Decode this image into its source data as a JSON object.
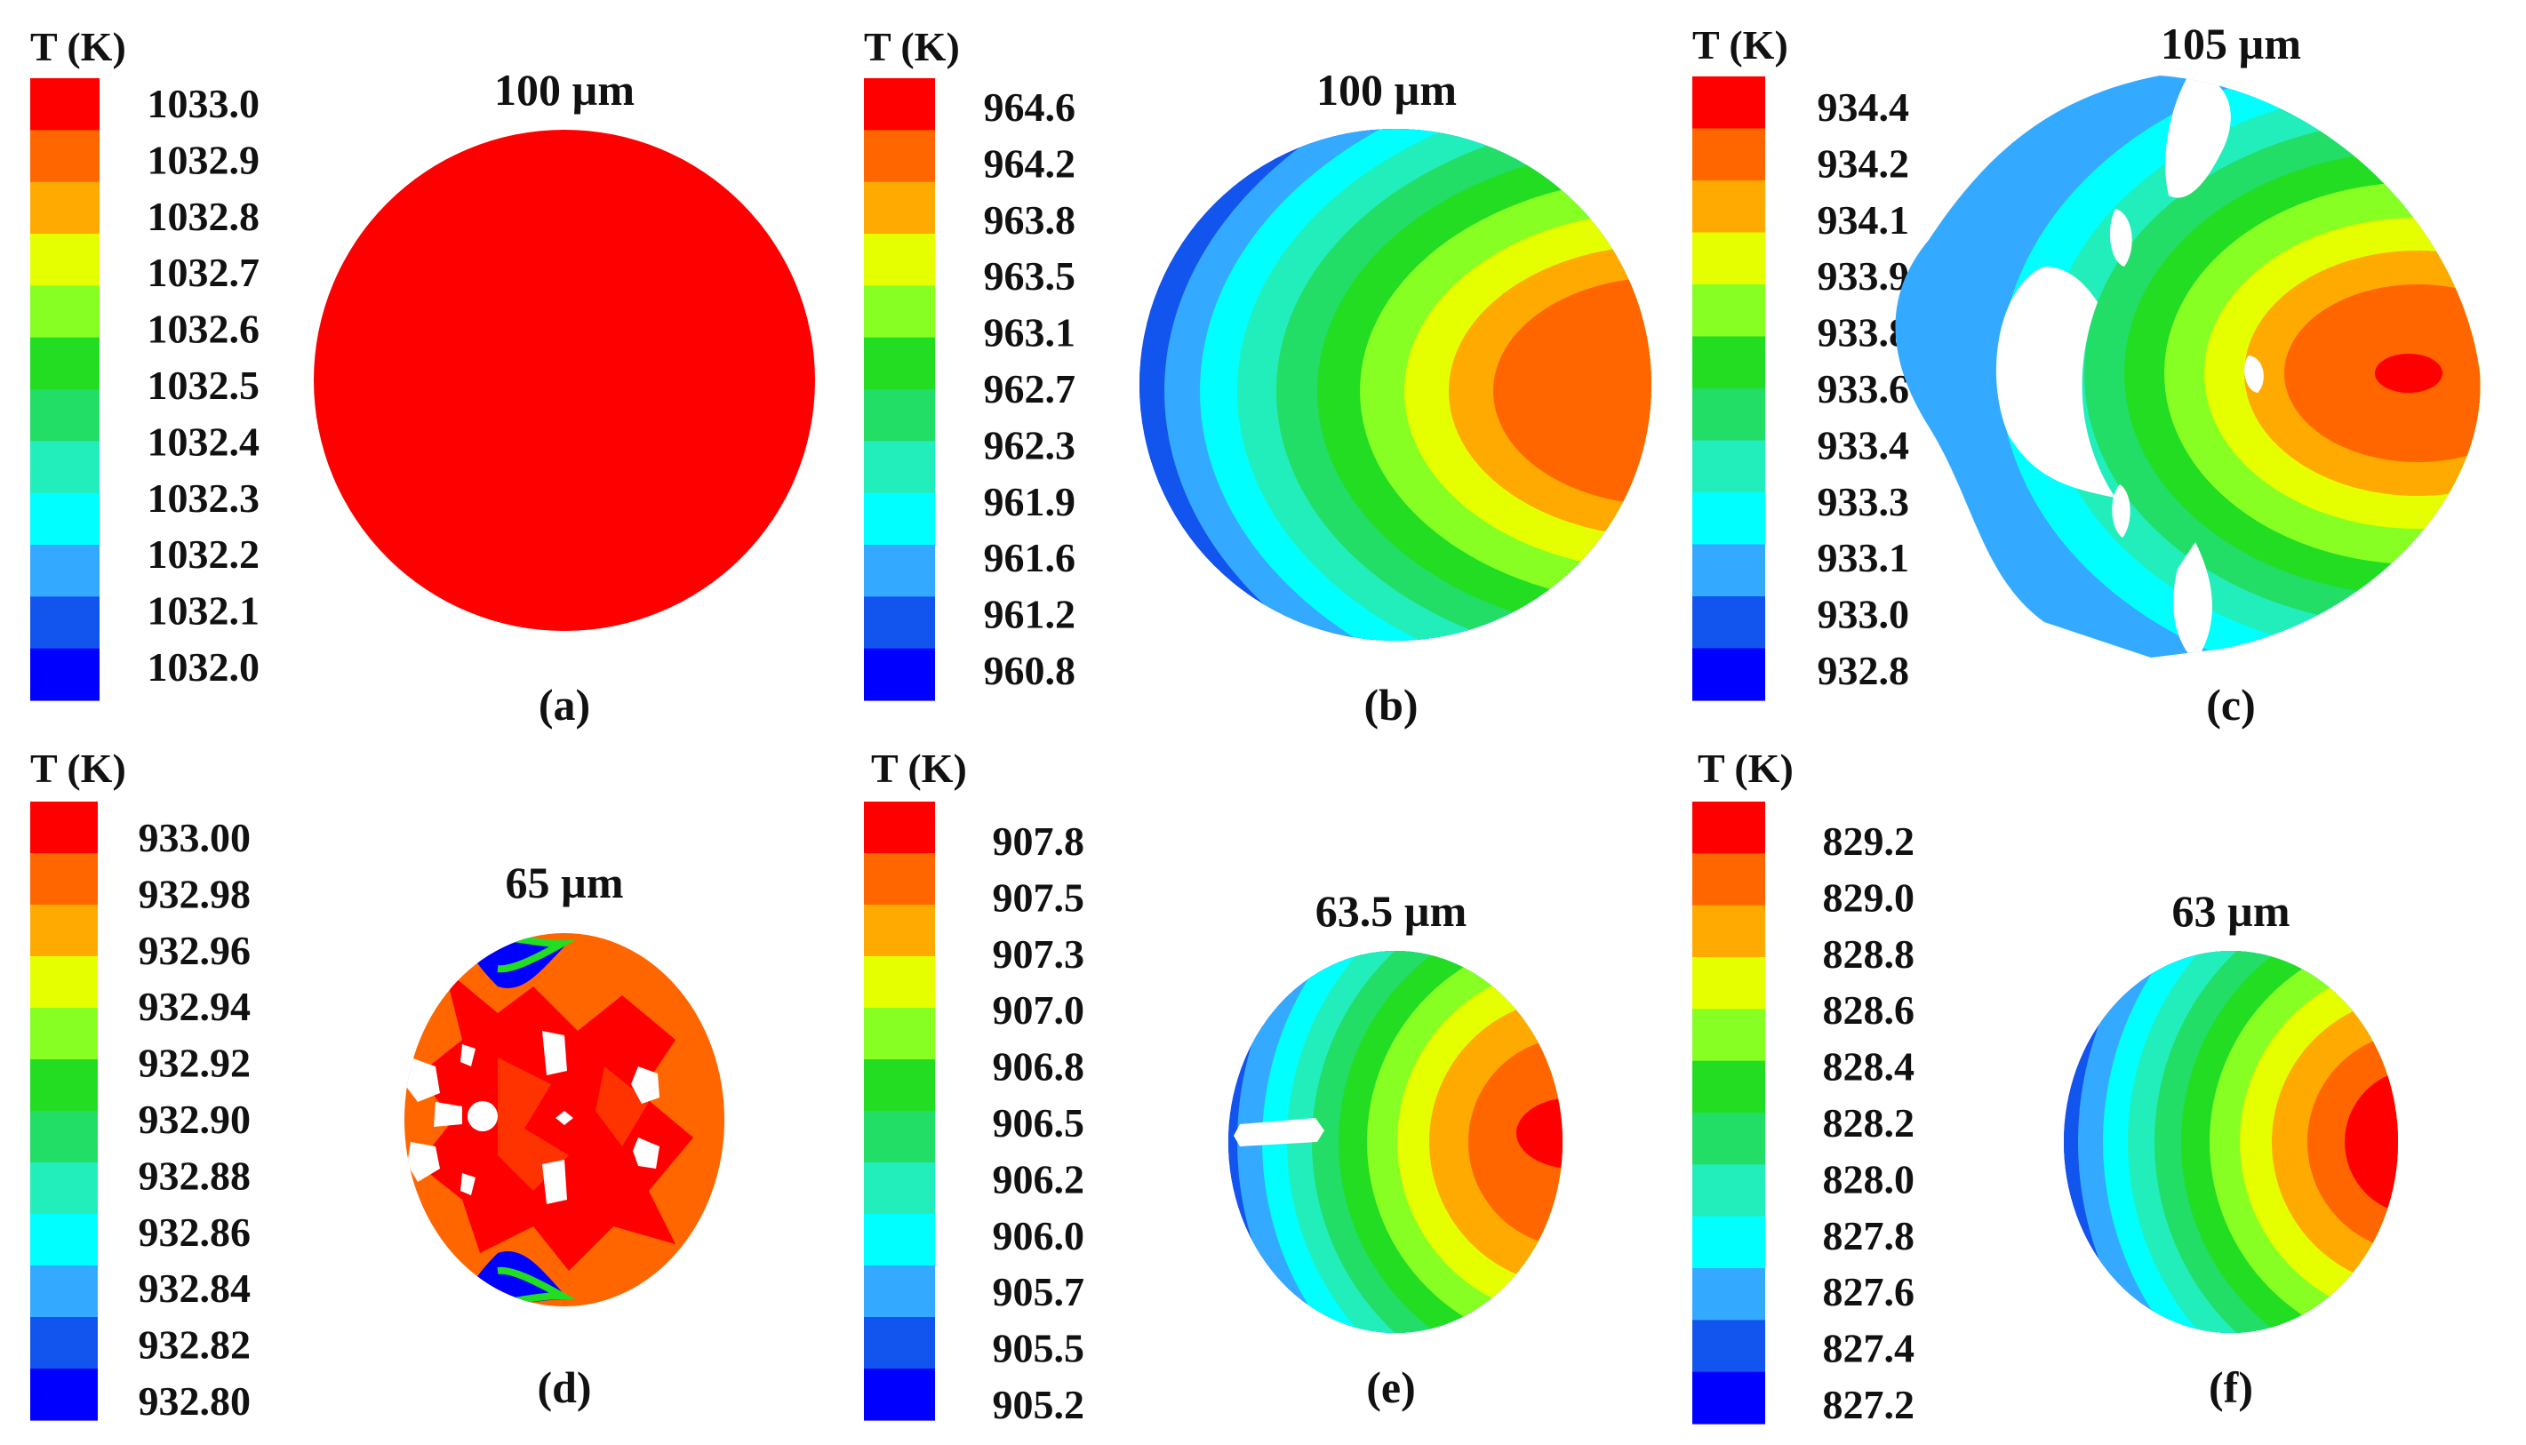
{
  "colors": {
    "scale": [
      "#ff0000",
      "#ff6600",
      "#ffaa00",
      "#e6ff00",
      "#88ff22",
      "#22dd22",
      "#22dd66",
      "#22eebb",
      "#00ffff",
      "#33aaff",
      "#1155ee",
      "#0000ff"
    ],
    "hole": "#ffffff",
    "text": "#111111"
  },
  "panels": [
    {
      "id": "a",
      "legend_title": "T (K)",
      "legend_values": [
        "1033.0",
        "1032.9",
        "1032.8",
        "1032.7",
        "1032.6",
        "1032.5",
        "1032.4",
        "1032.3",
        "1032.2",
        "1032.1",
        "1032.0"
      ],
      "size_label": "100 µm",
      "panel_label": "(a)",
      "shape": "uniform-disk"
    },
    {
      "id": "b",
      "legend_title": "T (K)",
      "legend_values": [
        "964.6",
        "964.2",
        "963.8",
        "963.5",
        "963.1",
        "962.7",
        "962.3",
        "961.9",
        "961.6",
        "961.2",
        "960.8"
      ],
      "size_label": "100 µm",
      "panel_label": "(b)",
      "shape": "gradient-disk"
    },
    {
      "id": "c",
      "legend_title": "T (K)",
      "legend_values": [
        "934.4",
        "934.2",
        "934.1",
        "933.9",
        "933.8",
        "933.6",
        "933.4",
        "933.3",
        "933.1",
        "933.0",
        "932.8"
      ],
      "size_label": "105 µm",
      "panel_label": "(c)",
      "shape": "gradient-irregular-with-holes"
    },
    {
      "id": "d",
      "legend_title": "T (K)",
      "legend_values": [
        "933.00",
        "932.98",
        "932.96",
        "932.94",
        "932.92",
        "932.90",
        "932.88",
        "932.86",
        "932.84",
        "932.82",
        "932.80"
      ],
      "size_label": "65 µm",
      "panel_label": "(d)",
      "shape": "mottled-disk-with-holes"
    },
    {
      "id": "e",
      "legend_title": "T (K)",
      "legend_values": [
        "907.8",
        "907.5",
        "907.3",
        "907.0",
        "906.8",
        "906.5",
        "906.2",
        "906.0",
        "905.7",
        "905.5",
        "905.2"
      ],
      "size_label": "63.5 µm",
      "panel_label": "(e)",
      "shape": "gradient-disk-with-slit"
    },
    {
      "id": "f",
      "legend_title": "T (K)",
      "legend_values": [
        "829.2",
        "829.0",
        "828.8",
        "828.6",
        "828.4",
        "828.2",
        "828.0",
        "827.8",
        "827.6",
        "827.4",
        "827.2"
      ],
      "size_label": "63 µm",
      "panel_label": "(f)",
      "shape": "gradient-disk"
    }
  ]
}
